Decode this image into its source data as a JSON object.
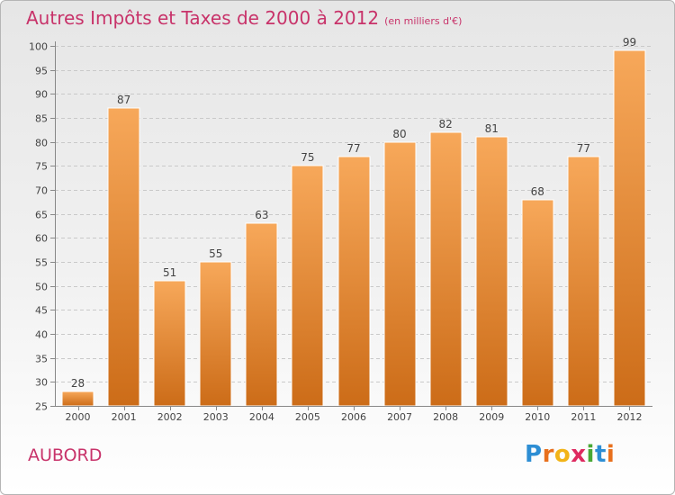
{
  "header": {
    "title": "Autres Impôts et Taxes de 2000 à 2012",
    "unit": "(en milliers d'€)"
  },
  "footer": {
    "place": "AUBORD",
    "logo": [
      "P",
      "r",
      "o",
      "x",
      "i",
      "t",
      "i"
    ]
  },
  "colors": {
    "accent": "#c8336a",
    "bar_top": "#f7a85a",
    "bar_bottom": "#cc6c18",
    "grid": "#c9c9c9"
  },
  "chart_data": {
    "type": "bar",
    "categories": [
      "2000",
      "2001",
      "2002",
      "2003",
      "2004",
      "2005",
      "2006",
      "2007",
      "2008",
      "2009",
      "2010",
      "2011",
      "2012"
    ],
    "values": [
      28,
      87,
      51,
      55,
      63,
      75,
      77,
      80,
      82,
      81,
      68,
      77,
      99
    ],
    "data_labels": [
      "28",
      "87",
      "51",
      "55",
      "63",
      "75",
      "77",
      "80",
      "82",
      "81",
      "68",
      "77",
      "99"
    ],
    "yticks": [
      25,
      30,
      35,
      40,
      45,
      50,
      55,
      60,
      65,
      70,
      75,
      80,
      85,
      90,
      95,
      100
    ],
    "ylim": [
      25,
      100
    ],
    "grid": true,
    "legend": "none",
    "title": "Autres Impôts et Taxes de 2000 à 2012",
    "xlabel": "",
    "ylabel": ""
  }
}
